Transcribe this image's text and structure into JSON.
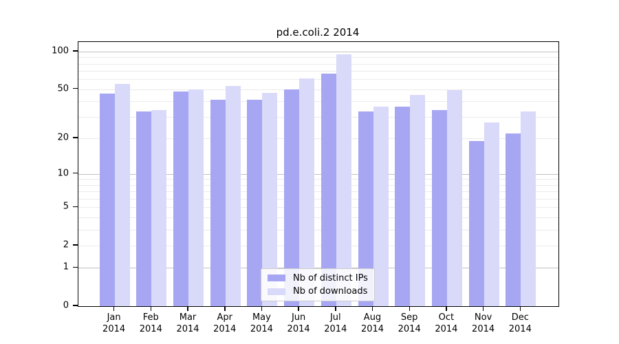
{
  "chart_data": {
    "type": "bar",
    "title": "pd.e.coli.2 2014",
    "yscale": "log(1+y)",
    "ylim": [
      0,
      100
    ],
    "yticks": [
      0,
      1,
      2,
      5,
      10,
      20,
      50,
      100
    ],
    "grid_major": [
      1,
      10,
      100
    ],
    "grid_minor": [
      2,
      3,
      4,
      5,
      6,
      7,
      8,
      9,
      20,
      30,
      40,
      50,
      60,
      70,
      80,
      90
    ],
    "categories": [
      "Jan",
      "Feb",
      "Mar",
      "Apr",
      "May",
      "Jun",
      "Jul",
      "Aug",
      "Sep",
      "Oct",
      "Nov",
      "Dec"
    ],
    "xlabel_year": "2014",
    "series": [
      {
        "name": "Nb of distinct IPs",
        "color": "#a6a6f2",
        "values": [
          46,
          33,
          48,
          41,
          41,
          50,
          67,
          33,
          36,
          34,
          19,
          22
        ]
      },
      {
        "name": "Nb of downloads",
        "color": "#d9d9f9",
        "values": [
          55,
          34,
          50,
          53,
          47,
          61,
          95,
          36,
          45,
          49,
          27,
          33
        ]
      }
    ],
    "legend": {
      "position": "lower center",
      "entries": [
        "Nb of distinct IPs",
        "Nb of downloads"
      ]
    }
  },
  "colors": {
    "background": "#ffffff",
    "axis": "#000000",
    "grid_major": "#c0c0c0",
    "grid_minor": "#ebebeb",
    "legend_border": "#cccccc"
  }
}
